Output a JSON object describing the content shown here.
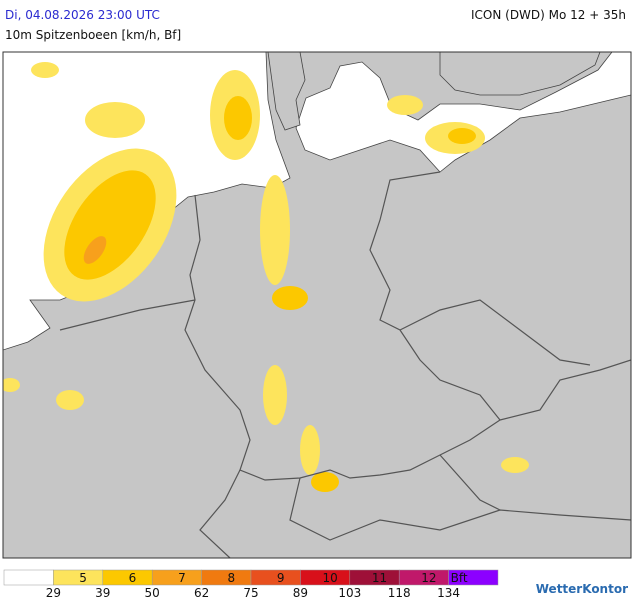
{
  "header": {
    "valid_time": "Di, 04.08.2026 23:00 UTC",
    "model_run": "ICON (DWD) Mo 12 + 35h",
    "parameter": "10m Spitzenboeen [km/h, Bf]"
  },
  "legend": {
    "classes": [
      {
        "color": "#ffffff"
      },
      {
        "label": "5",
        "color": "#fde45c"
      },
      {
        "label": "6",
        "color": "#fcc800"
      },
      {
        "label": "7",
        "color": "#f7a01c"
      },
      {
        "label": "8",
        "color": "#f07a10"
      },
      {
        "label": "9",
        "color": "#e8501e"
      },
      {
        "label": "10",
        "color": "#d8101a"
      },
      {
        "label": "11",
        "color": "#9e1038"
      },
      {
        "label": "12",
        "color": "#c0186a"
      },
      {
        "label": "Bft",
        "color": "#8c00ff"
      }
    ],
    "thresholds": [
      29,
      39,
      50,
      62,
      75,
      89,
      103,
      118,
      134
    ]
  },
  "brand": "WetterKontor"
}
